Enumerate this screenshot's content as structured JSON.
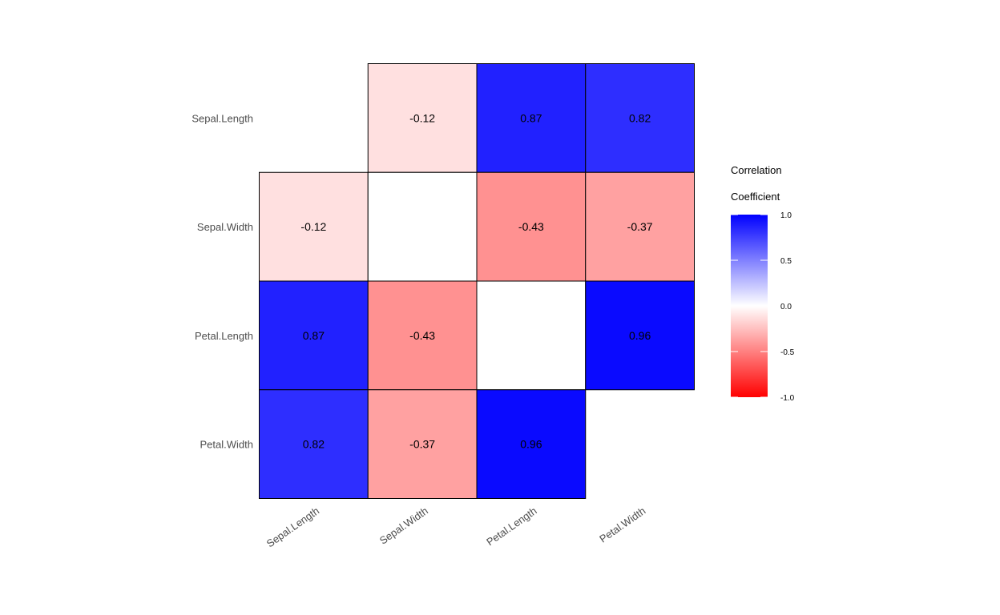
{
  "chart_data": {
    "type": "heatmap",
    "title": "",
    "xlabel": "",
    "ylabel": "",
    "variables": [
      "Sepal.Length",
      "Sepal.Width",
      "Petal.Length",
      "Petal.Width"
    ],
    "x_categories": [
      "Sepal.Length",
      "Sepal.Width",
      "Petal.Length",
      "Petal.Width"
    ],
    "y_categories": [
      "Sepal.Length",
      "Sepal.Width",
      "Petal.Length",
      "Petal.Width"
    ],
    "cells": [
      {
        "x": "Sepal.Width",
        "y": "Sepal.Length",
        "value": -0.12,
        "label": "-0.12"
      },
      {
        "x": "Petal.Length",
        "y": "Sepal.Length",
        "value": 0.87,
        "label": "0.87"
      },
      {
        "x": "Petal.Width",
        "y": "Sepal.Length",
        "value": 0.82,
        "label": "0.82"
      },
      {
        "x": "Sepal.Length",
        "y": "Sepal.Width",
        "value": -0.12,
        "label": "-0.12"
      },
      {
        "x": "Sepal.Width",
        "y": "Sepal.Width",
        "value": 0.0,
        "label": ""
      },
      {
        "x": "Petal.Length",
        "y": "Sepal.Width",
        "value": -0.43,
        "label": "-0.43"
      },
      {
        "x": "Petal.Width",
        "y": "Sepal.Width",
        "value": -0.37,
        "label": "-0.37"
      },
      {
        "x": "Sepal.Length",
        "y": "Petal.Length",
        "value": 0.87,
        "label": "0.87"
      },
      {
        "x": "Sepal.Width",
        "y": "Petal.Length",
        "value": -0.43,
        "label": "-0.43"
      },
      {
        "x": "Petal.Length",
        "y": "Petal.Length",
        "value": 0.0,
        "label": ""
      },
      {
        "x": "Petal.Width",
        "y": "Petal.Length",
        "value": 0.96,
        "label": "0.96"
      },
      {
        "x": "Sepal.Length",
        "y": "Petal.Width",
        "value": 0.82,
        "label": "0.82"
      },
      {
        "x": "Sepal.Width",
        "y": "Petal.Width",
        "value": -0.37,
        "label": "-0.37"
      },
      {
        "x": "Petal.Length",
        "y": "Petal.Width",
        "value": 0.96,
        "label": "0.96"
      }
    ],
    "legend": {
      "title_lines": [
        "Correlation",
        "Coefficient"
      ],
      "range": [
        -1,
        1
      ],
      "ticks": [
        1.0,
        0.5,
        0.0,
        -0.5,
        -1.0
      ],
      "tick_labels": [
        "1.0",
        "0.5",
        "0.0",
        "-0.5",
        "-1.0"
      ],
      "placement": "right"
    },
    "colors": {
      "high": "#0000ff",
      "mid": "#ffffff",
      "low": "#ff0000"
    },
    "grid": false
  }
}
